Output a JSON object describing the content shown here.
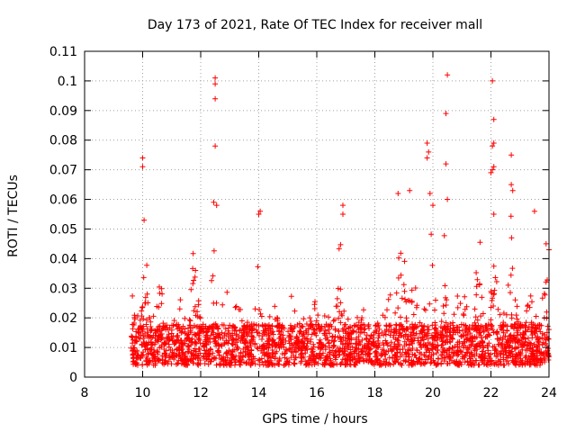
{
  "chart_data": {
    "type": "scatter",
    "title": "Day 173 of 2021, Rate Of TEC Index for receiver mall",
    "xlabel": "GPS time / hours",
    "ylabel": "ROTI / TECUs",
    "xlim": [
      8,
      24
    ],
    "ylim": [
      0,
      0.11
    ],
    "x_ticks": [
      "8",
      "10",
      "12",
      "14",
      "16",
      "18",
      "20",
      "22",
      "24"
    ],
    "y_ticks": [
      "0",
      "0.01",
      "0.02",
      "0.03",
      "0.04",
      "0.05",
      "0.06",
      "0.07",
      "0.08",
      "0.09",
      "0.1",
      "0.11"
    ],
    "grid": true,
    "marker": "+",
    "series_color": "#ff0000",
    "data_start_hour": 9.6,
    "data_end_hour": 24.0,
    "outliers": [
      {
        "x": 10.0,
        "y": 0.074
      },
      {
        "x": 10.0,
        "y": 0.071
      },
      {
        "x": 10.05,
        "y": 0.053
      },
      {
        "x": 12.5,
        "y": 0.101
      },
      {
        "x": 12.5,
        "y": 0.099
      },
      {
        "x": 12.5,
        "y": 0.094
      },
      {
        "x": 12.5,
        "y": 0.078
      },
      {
        "x": 12.45,
        "y": 0.059
      },
      {
        "x": 12.55,
        "y": 0.058
      },
      {
        "x": 14.05,
        "y": 0.056
      },
      {
        "x": 14.0,
        "y": 0.055
      },
      {
        "x": 16.9,
        "y": 0.058
      },
      {
        "x": 16.9,
        "y": 0.055
      },
      {
        "x": 18.8,
        "y": 0.062
      },
      {
        "x": 19.2,
        "y": 0.063
      },
      {
        "x": 19.8,
        "y": 0.079
      },
      {
        "x": 19.85,
        "y": 0.076
      },
      {
        "x": 19.8,
        "y": 0.074
      },
      {
        "x": 19.9,
        "y": 0.062
      },
      {
        "x": 20.0,
        "y": 0.058
      },
      {
        "x": 20.5,
        "y": 0.102
      },
      {
        "x": 20.45,
        "y": 0.089
      },
      {
        "x": 20.45,
        "y": 0.072
      },
      {
        "x": 20.5,
        "y": 0.06
      },
      {
        "x": 22.05,
        "y": 0.1
      },
      {
        "x": 22.1,
        "y": 0.087
      },
      {
        "x": 22.1,
        "y": 0.079
      },
      {
        "x": 22.05,
        "y": 0.078
      },
      {
        "x": 22.1,
        "y": 0.071
      },
      {
        "x": 22.05,
        "y": 0.07
      },
      {
        "x": 22.0,
        "y": 0.069
      },
      {
        "x": 22.1,
        "y": 0.055
      },
      {
        "x": 22.7,
        "y": 0.075
      },
      {
        "x": 22.7,
        "y": 0.065
      },
      {
        "x": 22.75,
        "y": 0.063
      },
      {
        "x": 23.5,
        "y": 0.056
      },
      {
        "x": 23.9,
        "y": 0.045
      },
      {
        "x": 24.0,
        "y": 0.043
      }
    ],
    "bulk_points_description_omitted": false
  }
}
